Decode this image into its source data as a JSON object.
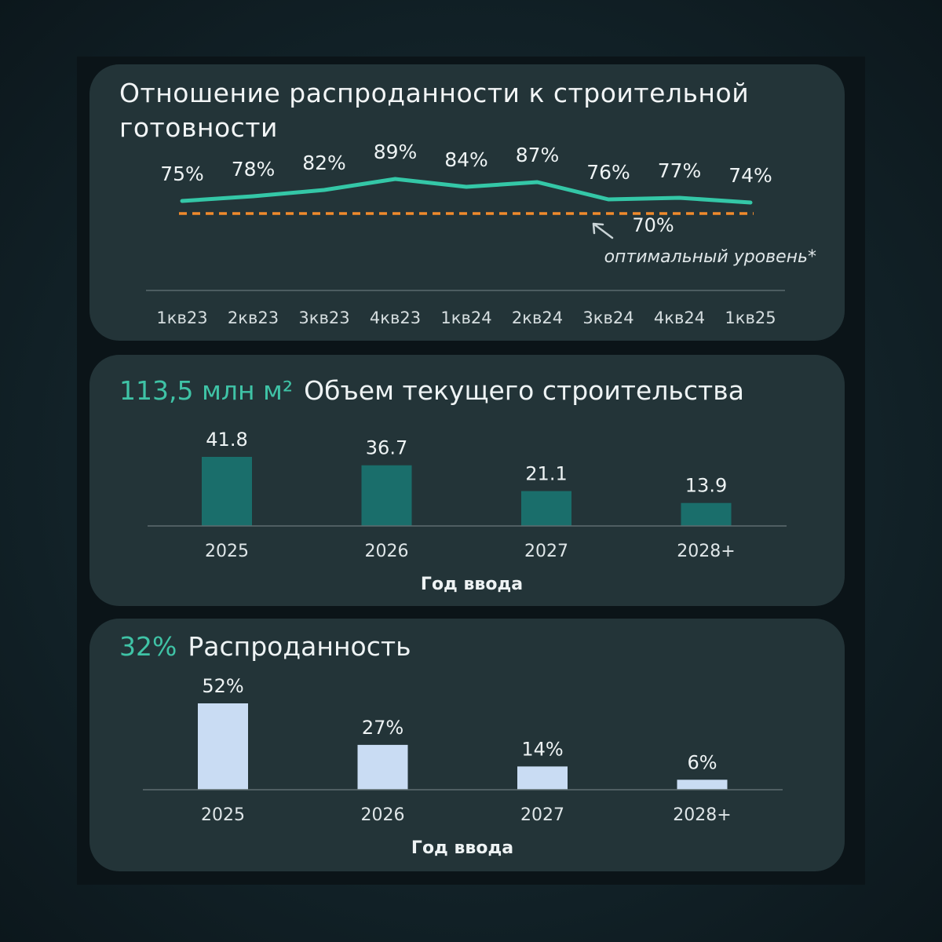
{
  "colors": {
    "line": "#34c7a7",
    "optimal_line": "#f08a2c",
    "bar_volume": "#1a6e6b",
    "bar_sold": "#c9dcf3",
    "accent_text": "#3fc3a6"
  },
  "chart_data": [
    {
      "type": "line",
      "title_line1": "Отношение распроданности к строительной",
      "title_line2": "готовности",
      "categories": [
        "1кв23",
        "2кв23",
        "3кв23",
        "4кв23",
        "1кв24",
        "2кв24",
        "3кв24",
        "4кв24",
        "1кв25"
      ],
      "series": [
        {
          "values": [
            75,
            78,
            82,
            89,
            84,
            87,
            76,
            77,
            74
          ],
          "labels": [
            "75%",
            "78%",
            "82%",
            "89%",
            "84%",
            "87%",
            "76%",
            "77%",
            "74%"
          ]
        }
      ],
      "reference_line": {
        "value": 70,
        "label": "70%",
        "note": "оптимальный уровень*"
      },
      "ylim": [
        40,
        100
      ],
      "grid": false
    },
    {
      "type": "bar",
      "headline": "113,5 млн м²",
      "title": "Объем текущего строительства",
      "categories": [
        "2025",
        "2026",
        "2027",
        "2028+"
      ],
      "values": [
        41.8,
        36.7,
        21.1,
        13.9
      ],
      "labels": [
        "41.8",
        "36.7",
        "21.1",
        "13.9"
      ],
      "xlabel": "Год ввода",
      "ylim": [
        0,
        41.8
      ]
    },
    {
      "type": "bar",
      "headline": "32%",
      "title": "Распроданность",
      "categories": [
        "2025",
        "2026",
        "2027",
        "2028+"
      ],
      "values": [
        52,
        27,
        14,
        6
      ],
      "labels": [
        "52%",
        "27%",
        "14%",
        "6%"
      ],
      "xlabel": "Год ввода",
      "ylim": [
        0,
        52
      ]
    }
  ]
}
